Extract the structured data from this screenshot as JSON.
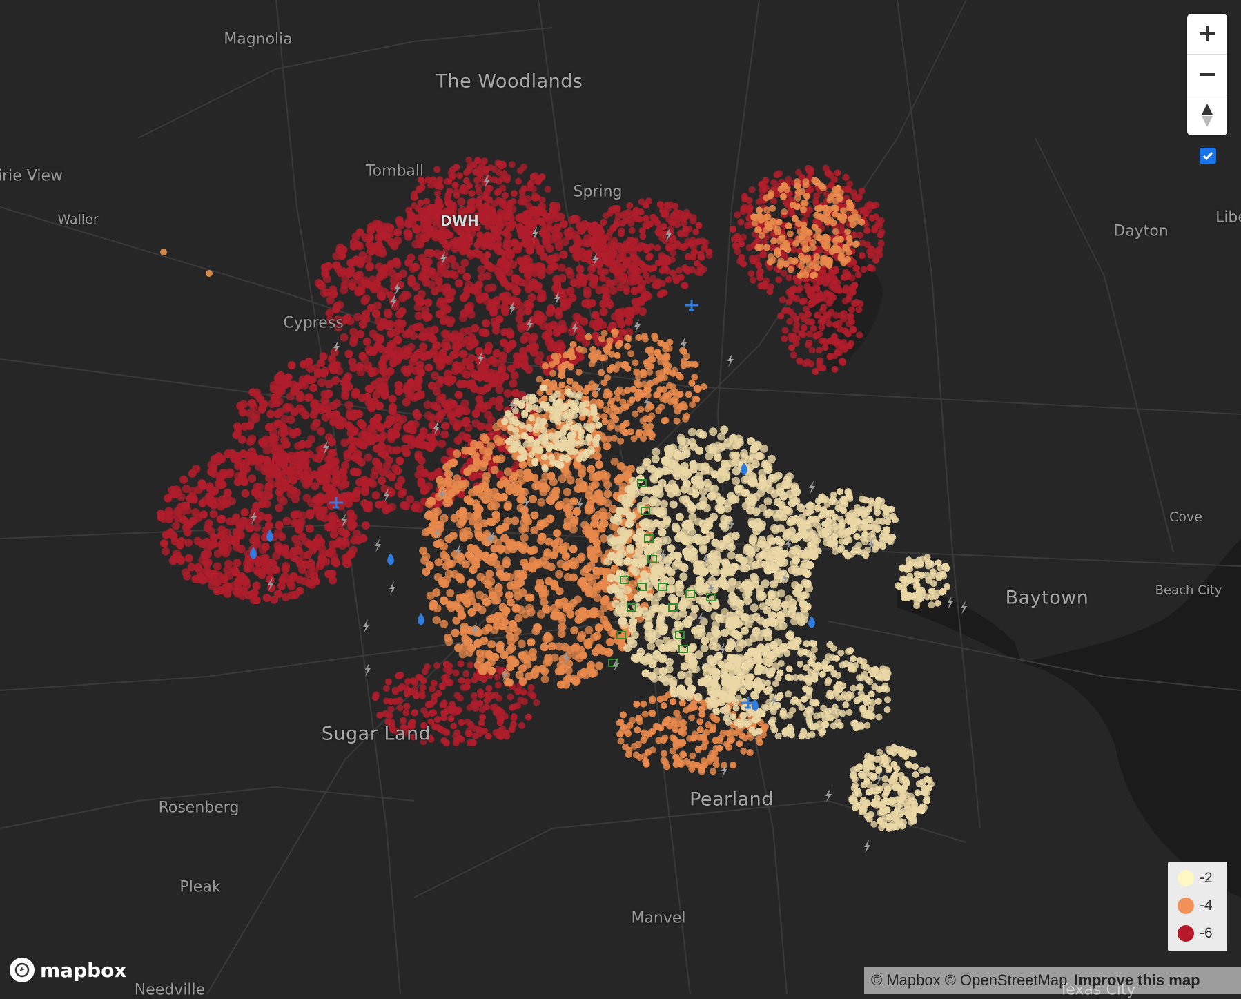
{
  "map": {
    "places": [
      {
        "name": "Magnolia"
      },
      {
        "name": "The Woodlands"
      },
      {
        "name": "irie View"
      },
      {
        "name": "Tomball"
      },
      {
        "name": "Spring"
      },
      {
        "name": "Waller"
      },
      {
        "name": "DWH"
      },
      {
        "name": "Dayton"
      },
      {
        "name": "Libe"
      },
      {
        "name": "Cypress"
      },
      {
        "name": "Cove"
      },
      {
        "name": "Baytown"
      },
      {
        "name": "Beach City"
      },
      {
        "name": "Sugar Land"
      },
      {
        "name": "Pearland"
      },
      {
        "name": "Rosenberg"
      },
      {
        "name": "Pleak"
      },
      {
        "name": "Manvel"
      },
      {
        "name": "Needville"
      },
      {
        "name": "Texas City"
      }
    ],
    "colors": {
      "background": "#262626",
      "road": "#3a3a3a",
      "water": "#1b1b1b",
      "high": "#b01d2b",
      "mid": "#e8894c",
      "low": "#ead7a6",
      "lightning": "#9a9a9a",
      "water_marker": "#2f7de1",
      "metro": "#2f8f2f"
    }
  },
  "controls": {
    "zoom_in_icon": "plus-icon",
    "zoom_out_icon": "minus-icon",
    "compass_icon": "compass-icon",
    "layer_toggle_checked": true
  },
  "legend": {
    "items": [
      {
        "label": "-2",
        "color": "#fdf7c3"
      },
      {
        "label": "-4",
        "color": "#f0915a"
      },
      {
        "label": "-6",
        "color": "#b7192a"
      }
    ]
  },
  "attribution": {
    "mapbox": "© Mapbox",
    "osm": "© OpenStreetMap",
    "improve": "Improve this map"
  },
  "logo": {
    "text": "mapbox"
  }
}
